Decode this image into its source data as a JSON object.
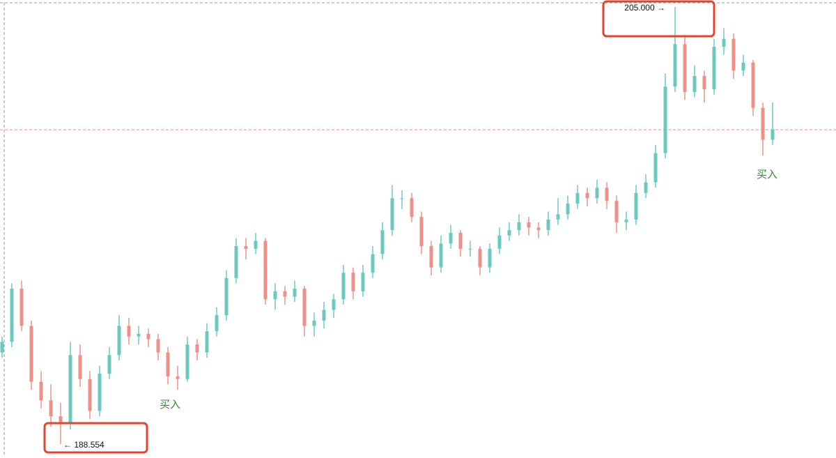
{
  "chart_data": {
    "type": "candlestick",
    "up_color": "#6cc9c1",
    "down_color": "#ef9088",
    "ylim": [
      188.16,
      205.26
    ],
    "price_line": {
      "value": 200.38,
      "color": "#ef9088"
    },
    "high_label": {
      "value": 205.0,
      "label": "205.000 →"
    },
    "low_label": {
      "value": 188.554,
      "label": "← 188.554"
    },
    "signals": [
      "买入",
      "买入"
    ],
    "candles": [
      [
        192.0,
        192.6,
        191.8,
        192.4
      ],
      [
        192.4,
        194.6,
        192.2,
        194.4
      ],
      [
        194.4,
        194.7,
        192.8,
        193.0
      ],
      [
        193.0,
        193.2,
        190.6,
        190.9
      ],
      [
        190.9,
        191.3,
        189.9,
        190.2
      ],
      [
        190.2,
        190.8,
        189.2,
        189.6
      ],
      [
        189.6,
        190.1,
        188.554,
        189.3
      ],
      [
        189.3,
        192.4,
        189.1,
        191.9
      ],
      [
        191.9,
        192.3,
        190.7,
        191.0
      ],
      [
        191.0,
        191.3,
        189.5,
        189.8
      ],
      [
        189.8,
        191.5,
        189.6,
        191.2
      ],
      [
        191.2,
        192.2,
        191.0,
        191.9
      ],
      [
        191.9,
        193.4,
        191.7,
        193.0
      ],
      [
        193.0,
        193.3,
        192.3,
        192.6
      ],
      [
        192.6,
        193.0,
        192.3,
        192.7
      ],
      [
        192.7,
        192.9,
        192.2,
        192.5
      ],
      [
        192.5,
        192.7,
        191.7,
        192.0
      ],
      [
        192.0,
        192.2,
        190.8,
        191.1
      ],
      [
        191.1,
        191.5,
        190.6,
        191.0
      ],
      [
        191.0,
        192.6,
        190.9,
        192.3
      ],
      [
        192.3,
        192.5,
        191.7,
        192.0
      ],
      [
        192.0,
        193.1,
        191.8,
        192.8
      ],
      [
        192.8,
        193.7,
        192.6,
        193.4
      ],
      [
        193.4,
        195.1,
        193.2,
        194.8
      ],
      [
        194.8,
        196.3,
        194.6,
        196.0
      ],
      [
        196.0,
        196.3,
        195.5,
        195.9
      ],
      [
        195.9,
        196.5,
        195.7,
        196.2
      ],
      [
        196.2,
        196.3,
        193.8,
        194.0
      ],
      [
        194.0,
        194.6,
        193.6,
        194.3
      ],
      [
        194.3,
        194.5,
        193.8,
        194.1
      ],
      [
        194.1,
        194.7,
        193.9,
        194.4
      ],
      [
        194.4,
        194.5,
        192.6,
        193.0
      ],
      [
        193.0,
        193.5,
        192.6,
        193.2
      ],
      [
        193.2,
        193.9,
        192.9,
        193.6
      ],
      [
        193.6,
        194.2,
        193.3,
        194.0
      ],
      [
        194.0,
        195.3,
        193.8,
        195.0
      ],
      [
        195.0,
        195.2,
        194.0,
        194.3
      ],
      [
        194.3,
        195.3,
        194.1,
        195.0
      ],
      [
        195.0,
        196.0,
        194.8,
        195.7
      ],
      [
        195.7,
        196.9,
        195.5,
        196.6
      ],
      [
        196.6,
        198.3,
        196.4,
        197.8
      ],
      [
        197.8,
        198.1,
        197.4,
        197.8
      ],
      [
        197.8,
        198.0,
        196.9,
        197.1
      ],
      [
        197.1,
        197.3,
        195.7,
        196.0
      ],
      [
        196.0,
        196.2,
        194.9,
        195.2
      ],
      [
        195.2,
        196.4,
        195.0,
        196.1
      ],
      [
        196.1,
        196.8,
        195.9,
        196.5
      ],
      [
        196.5,
        196.6,
        195.6,
        195.9
      ],
      [
        195.9,
        196.2,
        195.6,
        195.9
      ],
      [
        195.9,
        196.0,
        194.9,
        195.2
      ],
      [
        195.2,
        196.1,
        195.0,
        195.9
      ],
      [
        195.9,
        196.7,
        195.7,
        196.4
      ],
      [
        196.4,
        196.9,
        196.2,
        196.6
      ],
      [
        196.6,
        197.2,
        196.4,
        196.9
      ],
      [
        196.9,
        197.1,
        196.4,
        196.7
      ],
      [
        196.7,
        196.9,
        196.3,
        196.6
      ],
      [
        196.6,
        197.3,
        196.4,
        197.0
      ],
      [
        197.0,
        197.8,
        196.8,
        197.2
      ],
      [
        197.2,
        197.9,
        197.0,
        197.6
      ],
      [
        197.6,
        198.3,
        197.4,
        198.0
      ],
      [
        198.0,
        198.2,
        197.5,
        197.8
      ],
      [
        197.8,
        198.5,
        197.6,
        198.2
      ],
      [
        198.2,
        198.4,
        197.4,
        197.7
      ],
      [
        197.7,
        197.9,
        196.5,
        196.9
      ],
      [
        196.9,
        197.3,
        196.6,
        197.0
      ],
      [
        197.0,
        198.3,
        196.8,
        198.0
      ],
      [
        198.0,
        198.7,
        197.8,
        198.4
      ],
      [
        198.4,
        199.8,
        198.2,
        199.5
      ],
      [
        199.5,
        202.5,
        199.3,
        202.0
      ],
      [
        202.0,
        205.0,
        201.8,
        203.6
      ],
      [
        203.6,
        203.9,
        201.5,
        201.8
      ],
      [
        201.8,
        202.8,
        201.6,
        202.4
      ],
      [
        202.4,
        202.6,
        201.4,
        201.9
      ],
      [
        201.9,
        203.8,
        201.7,
        203.5
      ],
      [
        203.5,
        204.2,
        203.2,
        203.8
      ],
      [
        203.8,
        204.0,
        202.3,
        202.6
      ],
      [
        202.6,
        203.2,
        202.4,
        202.9
      ],
      [
        202.9,
        203.0,
        200.9,
        201.2
      ],
      [
        201.2,
        201.4,
        199.4,
        200.0
      ],
      [
        200.0,
        201.4,
        199.8,
        200.4
      ]
    ]
  }
}
